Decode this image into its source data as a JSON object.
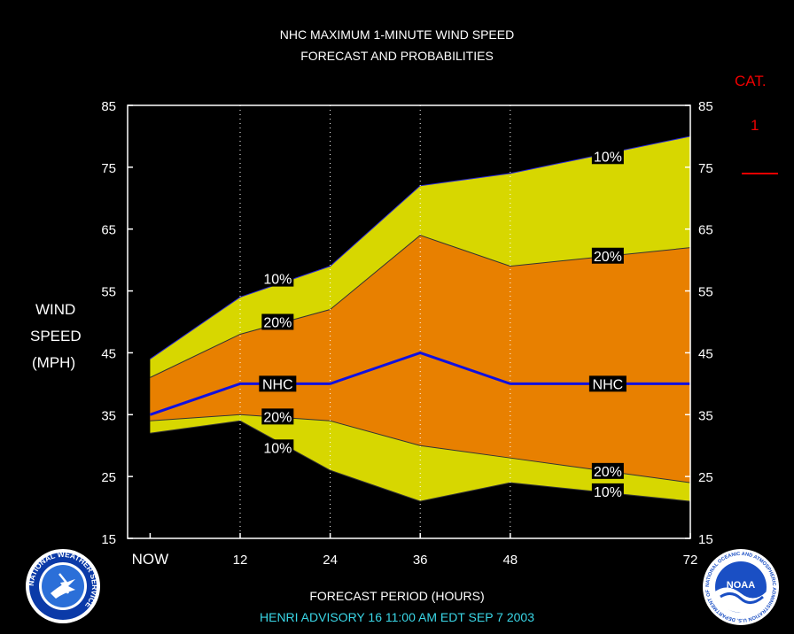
{
  "colors": {
    "background": "#000000",
    "band_10": "#d7d700",
    "band_20": "#e88000",
    "nhc_line": "#1010e0",
    "category": "#e00000",
    "advisory_text": "#3ad6e6",
    "text": "#ffffff"
  },
  "header": {
    "title_line1": "NHC MAXIMUM 1-MINUTE WIND SPEED",
    "title_line2": "FORECAST AND PROBABILITIES"
  },
  "y_axis_label": [
    "WIND",
    "SPEED",
    "(MPH)"
  ],
  "category": {
    "label": "CAT.",
    "value": "1"
  },
  "footer": {
    "xlabel": "FORECAST PERIOD (HOURS)",
    "advisory": "HENRI   ADVISORY  16 11:00 AM EDT SEP 7 2003"
  },
  "logos": {
    "left": "nws-logo",
    "right": "noaa-logo",
    "left_ring_text": "NATIONAL WEATHER SERVICE",
    "right_ring_text": "NATIONAL OCEANIC AND ATMOSPHERIC ADMINISTRATION U.S. DEPARTMENT OF COMMERCE",
    "right_center_text": "NOAA"
  },
  "chart_data": {
    "type": "area",
    "x_tick_values": [
      0,
      12,
      24,
      36,
      48,
      72
    ],
    "x_tick_labels": [
      "NOW",
      "12",
      "24",
      "36",
      "48",
      "72"
    ],
    "xlim": [
      -3,
      72
    ],
    "ylim": [
      15,
      85
    ],
    "y_ticks": [
      15,
      25,
      35,
      45,
      55,
      65,
      75,
      85
    ],
    "grid": "dotted vertical lines at forecast hours",
    "x": [
      0,
      12,
      24,
      36,
      48,
      72
    ],
    "series": [
      {
        "name": "10%",
        "role": "upper_10",
        "values": [
          44,
          54,
          59,
          72,
          74,
          80
        ]
      },
      {
        "name": "20%",
        "role": "upper_20",
        "values": [
          41,
          48,
          52,
          64,
          59,
          62
        ]
      },
      {
        "name": "NHC",
        "role": "nhc",
        "values": [
          35,
          40,
          40,
          45,
          40,
          40
        ]
      },
      {
        "name": "20%",
        "role": "lower_20",
        "values": [
          34,
          35,
          34,
          30,
          28,
          24
        ]
      },
      {
        "name": "10%",
        "role": "lower_10",
        "values": [
          32,
          34,
          26,
          21,
          24,
          21
        ]
      }
    ],
    "annotations": [
      {
        "text": "10%",
        "x": 17,
        "y": 57
      },
      {
        "text": "20%",
        "x": 17,
        "y": 50
      },
      {
        "text": "NHC",
        "x": 17,
        "y": 40
      },
      {
        "text": "20%",
        "x": 17,
        "y": 34.7
      },
      {
        "text": "10%",
        "x": 17,
        "y": 29.7
      },
      {
        "text": "10%",
        "x": 61,
        "y": 76.8
      },
      {
        "text": "20%",
        "x": 61,
        "y": 60.7
      },
      {
        "text": "NHC",
        "x": 61,
        "y": 40
      },
      {
        "text": "20%",
        "x": 61,
        "y": 25.9
      },
      {
        "text": "10%",
        "x": 61,
        "y": 22.6
      }
    ]
  }
}
